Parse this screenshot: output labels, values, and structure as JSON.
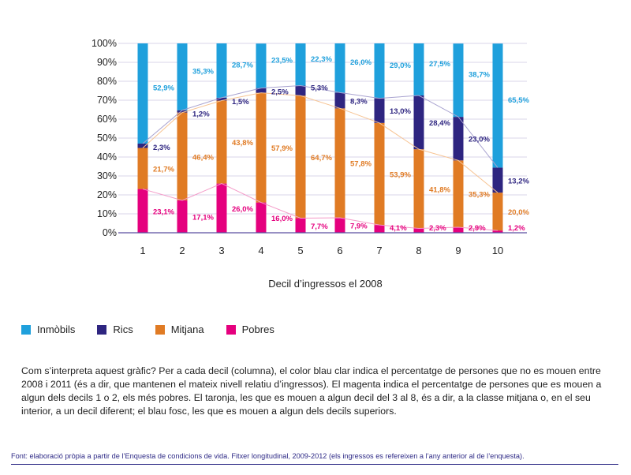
{
  "chart_data": {
    "type": "bar",
    "stacked": true,
    "xlabel": "Decil d’ingressos el 2008",
    "ylabel": "",
    "ylim": [
      0,
      100
    ],
    "yticks": [
      "0%",
      "10%",
      "20%",
      "30%",
      "40%",
      "50%",
      "60%",
      "70%",
      "80%",
      "90%",
      "100%"
    ],
    "categories": [
      "1",
      "2",
      "3",
      "4",
      "5",
      "6",
      "7",
      "8",
      "9",
      "10"
    ],
    "series": [
      {
        "name": "Pobres",
        "color": "#e5007e",
        "values": [
          23.1,
          17.1,
          26.0,
          16.0,
          7.7,
          7.9,
          4.1,
          2.3,
          2.9,
          1.2
        ],
        "labels": [
          "23,1%",
          "17,1%",
          "26,0%",
          "16,0%",
          "7,7%",
          "7,9%",
          "4,1%",
          "2,3%",
          "2,9%",
          "1,2%"
        ]
      },
      {
        "name": "Mitjana",
        "color": "#e07b24",
        "values": [
          21.7,
          46.4,
          43.8,
          57.9,
          64.7,
          57.8,
          53.9,
          41.8,
          35.3,
          20.0
        ],
        "labels": [
          "21,7%",
          "46,4%",
          "43,8%",
          "57,9%",
          "64,7%",
          "57,8%",
          "53,9%",
          "41,8%",
          "35,3%",
          "20,0%"
        ]
      },
      {
        "name": "Rics",
        "color": "#2e2580",
        "values": [
          2.3,
          1.2,
          1.5,
          2.5,
          5.3,
          8.3,
          13.0,
          28.4,
          23.0,
          13.2
        ],
        "labels": [
          "2,3%",
          "1,2%",
          "1,5%",
          "2,5%",
          "5,3%",
          "8,3%",
          "13,0%",
          "28,4%",
          "23,0%",
          "13,2%"
        ]
      },
      {
        "name": "Inmòbils",
        "color": "#1fa0dc",
        "values": [
          52.9,
          35.3,
          28.7,
          23.5,
          22.3,
          26.0,
          29.0,
          27.5,
          38.7,
          65.5
        ],
        "labels": [
          "52,9%",
          "35,3%",
          "28,7%",
          "23,5%",
          "22,3%",
          "26,0%",
          "29,0%",
          "27,5%",
          "38,7%",
          "65,5%"
        ]
      }
    ],
    "legend": [
      "Inmòbils",
      "Rics",
      "Mitjana",
      "Pobres"
    ],
    "legend_position": "bottom-left",
    "grid": true
  },
  "description": "Com s’interpreta aquest gràfic? Per a cada decil (columna), el color blau clar indica el percentatge de persones que no es mouen entre 2008 i 2011 (és a dir, que mantenen el mateix nivell relatiu d’ingressos). El magenta indica el percentatge de persones que es mouen a algun dels decils 1 o 2, els més pobres. El taronja, les que es mouen a algun decil del 3 al 8, és a dir, a la classe mitjana o, en el seu interior, a un decil diferent; el blau fosc, les que es mouen a algun dels decils superiors.",
  "source": "Font: elaboració pròpia a partir de l’Enquesta de condicions de vida. Fitxer longitudinal, 2009-2012 (els ingressos es refereixen a l’any anterior al de l’enquesta)."
}
